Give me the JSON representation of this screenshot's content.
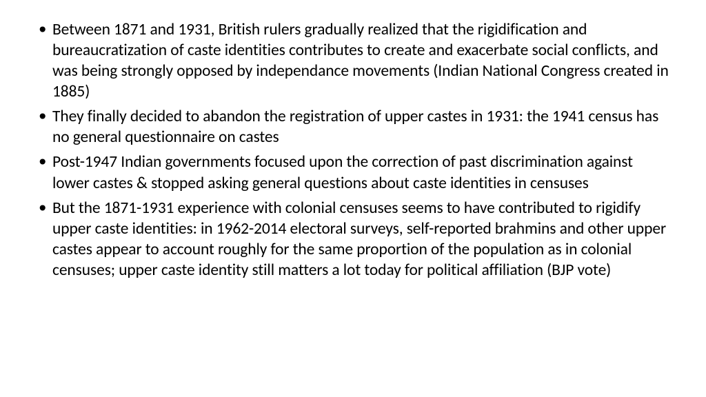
{
  "slide": {
    "text_color": "#000000",
    "background_color": "#ffffff",
    "font_size_pt": 24,
    "font_family": "Calibri",
    "bullets": [
      "Between 1871 and 1931, British rulers gradually realized that the rigidification and bureaucratization of caste identities contributes to create and exacerbate social conflicts, and was being strongly opposed by independance movements (Indian National Congress created in 1885)",
      "They finally decided to abandon the registration of upper castes in 1931: the 1941 census has no general questionnaire on castes",
      "Post-1947 Indian governments focused upon the correction of past discrimination against lower castes & stopped asking general questions about caste identities in censuses",
      "But the 1871-1931 experience with colonial censuses seems to have contributed to rigidify upper caste identities: in 1962-2014 electoral surveys, self-reported brahmins and other upper castes appear to account roughly for the same proportion of the population as in colonial censuses; upper caste identity still matters a lot today for political affiliation (BJP vote)"
    ]
  }
}
